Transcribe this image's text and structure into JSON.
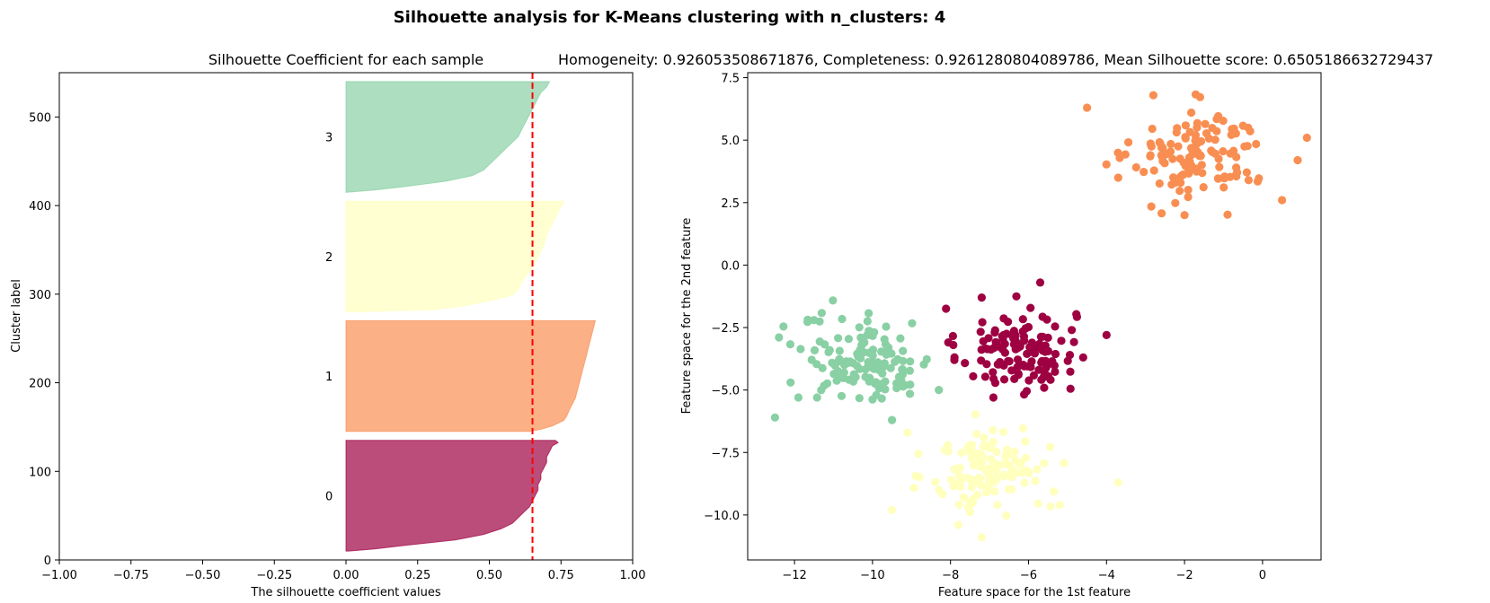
{
  "figure": {
    "suptitle": "Silhouette analysis for K-Means clustering with n_clusters: 4"
  },
  "colors": {
    "0": "#9e0142",
    "1": "#f98e52",
    "2": "#ffffbe",
    "3": "#89d0a4",
    "mean_line": "#ff0000"
  },
  "chart_data": [
    {
      "type": "area",
      "title": "Silhouette Coefficient for each sample",
      "xlabel": "The silhouette coefficient values",
      "ylabel": "Cluster label",
      "xlim": [
        -1.0,
        1.0
      ],
      "ylim": [
        0,
        550
      ],
      "xticks": [
        "−1.00",
        "−0.75",
        "−0.50",
        "−0.25",
        "0.00",
        "0.25",
        "0.50",
        "0.75",
        "1.00"
      ],
      "yticks": [
        "0",
        "100",
        "200",
        "300",
        "400",
        "500"
      ],
      "mean_silhouette": 0.6505186632729437,
      "series": [
        {
          "name": "0",
          "y_lower": 10,
          "y_upper": 135,
          "profile": [
            [
              0,
              0.73
            ],
            [
              0.02,
              0.74
            ],
            [
              0.05,
              0.72
            ],
            [
              0.1,
              0.71
            ],
            [
              0.15,
              0.7
            ],
            [
              0.2,
              0.7
            ],
            [
              0.25,
              0.69
            ],
            [
              0.3,
              0.68
            ],
            [
              0.35,
              0.68
            ],
            [
              0.4,
              0.67
            ],
            [
              0.45,
              0.67
            ],
            [
              0.5,
              0.66
            ],
            [
              0.55,
              0.65
            ],
            [
              0.6,
              0.64
            ],
            [
              0.65,
              0.62
            ],
            [
              0.7,
              0.6
            ],
            [
              0.75,
              0.58
            ],
            [
              0.8,
              0.54
            ],
            [
              0.85,
              0.48
            ],
            [
              0.9,
              0.38
            ],
            [
              0.95,
              0.2
            ],
            [
              0.98,
              0.1
            ],
            [
              1,
              0.01
            ]
          ]
        },
        {
          "name": "1",
          "y_lower": 145,
          "y_upper": 270,
          "profile": [
            [
              0,
              0.87
            ],
            [
              0.1,
              0.86
            ],
            [
              0.2,
              0.85
            ],
            [
              0.3,
              0.84
            ],
            [
              0.4,
              0.83
            ],
            [
              0.5,
              0.82
            ],
            [
              0.6,
              0.81
            ],
            [
              0.7,
              0.8
            ],
            [
              0.8,
              0.78
            ],
            [
              0.86,
              0.77
            ],
            [
              0.9,
              0.76
            ],
            [
              0.95,
              0.72
            ],
            [
              0.98,
              0.68
            ],
            [
              1,
              0.64
            ]
          ]
        },
        {
          "name": "2",
          "y_lower": 280,
          "y_upper": 405,
          "profile": [
            [
              0,
              0.76
            ],
            [
              0.1,
              0.74
            ],
            [
              0.2,
              0.72
            ],
            [
              0.3,
              0.7
            ],
            [
              0.4,
              0.69
            ],
            [
              0.5,
              0.67
            ],
            [
              0.6,
              0.65
            ],
            [
              0.7,
              0.62
            ],
            [
              0.8,
              0.6
            ],
            [
              0.85,
              0.58
            ],
            [
              0.9,
              0.5
            ],
            [
              0.95,
              0.4
            ],
            [
              0.98,
              0.3
            ],
            [
              1,
              0.01
            ]
          ]
        },
        {
          "name": "3",
          "y_lower": 415,
          "y_upper": 540,
          "profile": [
            [
              0,
              0.71
            ],
            [
              0.05,
              0.7
            ],
            [
              0.1,
              0.68
            ],
            [
              0.2,
              0.66
            ],
            [
              0.3,
              0.64
            ],
            [
              0.4,
              0.62
            ],
            [
              0.5,
              0.6
            ],
            [
              0.6,
              0.56
            ],
            [
              0.7,
              0.52
            ],
            [
              0.8,
              0.48
            ],
            [
              0.85,
              0.44
            ],
            [
              0.9,
              0.35
            ],
            [
              0.95,
              0.2
            ],
            [
              0.98,
              0.1
            ],
            [
              1,
              0.0
            ]
          ]
        }
      ]
    },
    {
      "type": "scatter",
      "title": "Homogeneity: 0.926053508671876, Completeness: 0.9261280804089786, Mean Silhouette score: 0.6505186632729437",
      "xlabel": "Feature space for the 1st feature",
      "ylabel": "Feature space for the 2nd feature",
      "xlim": [
        -13.2,
        1.5
      ],
      "ylim": [
        -11.8,
        7.7
      ],
      "xticks": [
        -12,
        -10,
        -8,
        -6,
        -4,
        -2,
        0
      ],
      "yticks": [
        7.5,
        5.0,
        2.5,
        0.0,
        -2.5,
        -5.0,
        -7.5,
        -10.0
      ],
      "xtick_labels": [
        "−12",
        "−10",
        "−8",
        "−6",
        "−4",
        "−2",
        "0"
      ],
      "ytick_labels": [
        "7.5",
        "5.0",
        "2.5",
        "0.0",
        "−2.5",
        "−5.0",
        "−7.5",
        "−10.0"
      ],
      "clusters": [
        {
          "name": "0",
          "center": [
            -6.3,
            -3.4
          ],
          "spread": [
            0.75,
            0.85
          ],
          "n": 125,
          "extra": [
            [
              -5.7,
              -0.7
            ],
            [
              -4.0,
              -2.8
            ],
            [
              -7.9,
              -3.8
            ],
            [
              -6.9,
              -5.3
            ],
            [
              -4.6,
              -3.7
            ],
            [
              -7.2,
              -1.3
            ]
          ]
        },
        {
          "name": "1",
          "center": [
            -1.6,
            4.4
          ],
          "spread": [
            0.85,
            0.9
          ],
          "n": 125,
          "extra": [
            [
              -4.5,
              6.3
            ],
            [
              0.9,
              4.2
            ],
            [
              -2.8,
              6.8
            ],
            [
              -2.0,
              2.0
            ],
            [
              0.5,
              2.6
            ],
            [
              -3.7,
              3.5
            ]
          ]
        },
        {
          "name": "2",
          "center": [
            -7.0,
            -8.2
          ],
          "spread": [
            0.75,
            0.85
          ],
          "n": 125,
          "extra": [
            [
              -3.7,
              -8.7
            ],
            [
              -9.5,
              -9.8
            ],
            [
              -7.2,
              -10.9
            ],
            [
              -9.1,
              -6.7
            ],
            [
              -5.2,
              -9.6
            ],
            [
              -7.8,
              -10.4
            ]
          ]
        },
        {
          "name": "3",
          "center": [
            -10.1,
            -3.8
          ],
          "spread": [
            0.85,
            0.85
          ],
          "n": 125,
          "extra": [
            [
              -12.5,
              -6.1
            ],
            [
              -11.5,
              -2.2
            ],
            [
              -9.5,
              -6.2
            ],
            [
              -12.1,
              -4.7
            ],
            [
              -8.3,
              -5.0
            ],
            [
              -11.9,
              -5.3
            ]
          ]
        }
      ]
    }
  ]
}
